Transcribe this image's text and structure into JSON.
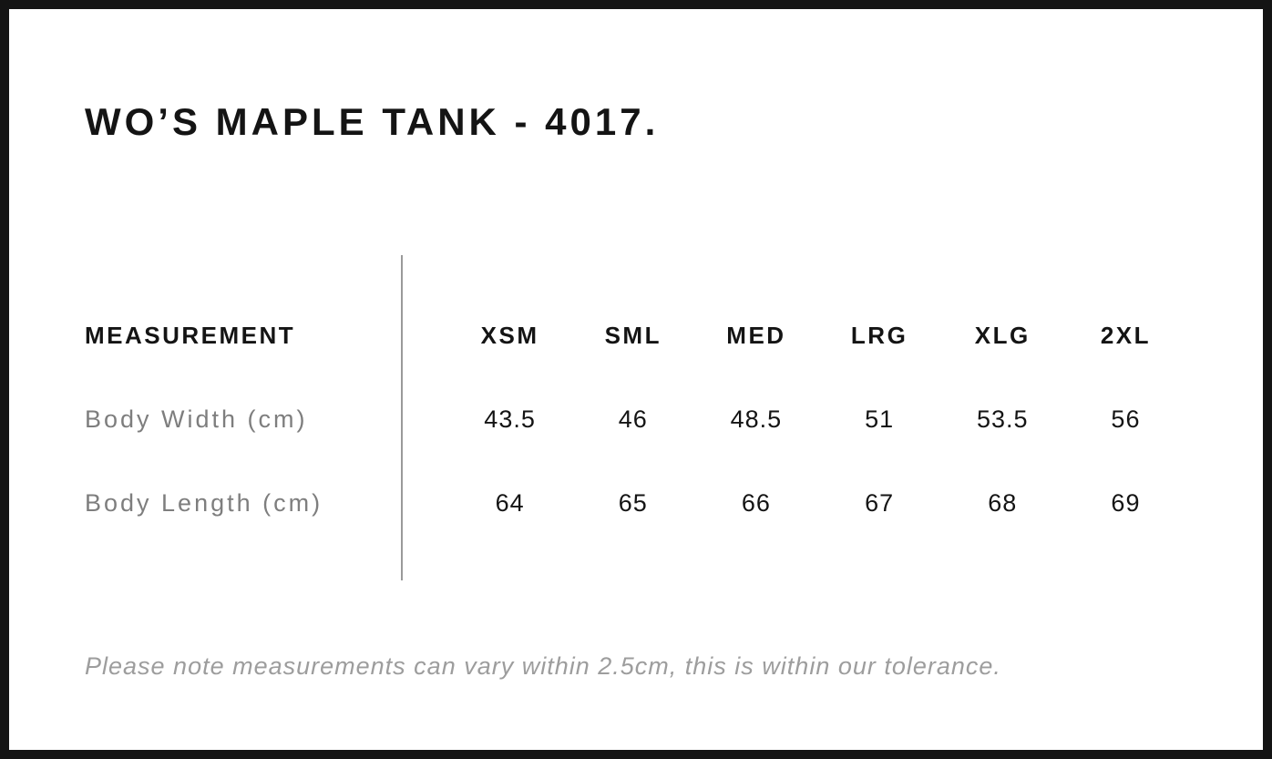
{
  "page": {
    "title": "WO’S MAPLE TANK - 4017.",
    "note": "Please note measurements can vary within 2.5cm, this is within our tolerance."
  },
  "size_chart": {
    "label_header": "MEASUREMENT",
    "size_headers": [
      "XSM",
      "SML",
      "MED",
      "LRG",
      "XLG",
      "2XL"
    ],
    "rows": [
      {
        "label": "Body Width (cm)",
        "values": [
          "43.5",
          "46",
          "48.5",
          "51",
          "53.5",
          "56"
        ]
      },
      {
        "label": "Body Length (cm)",
        "values": [
          "64",
          "65",
          "66",
          "67",
          "68",
          "69"
        ]
      }
    ]
  },
  "colors": {
    "background": "#ffffff",
    "frame_border": "#141414",
    "text_primary": "#141414",
    "label_gray": "#7e7e7e",
    "note_gray": "#9d9d9d",
    "divider_gray": "#9a9a9a"
  }
}
